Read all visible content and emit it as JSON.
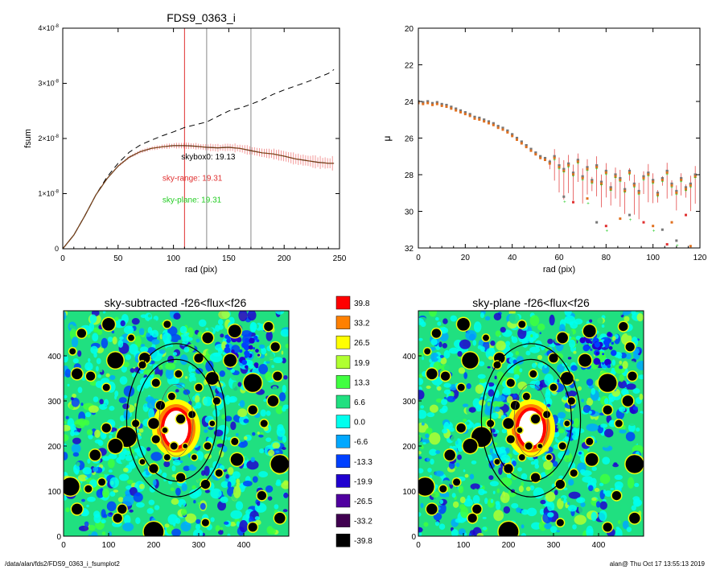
{
  "footer": {
    "path": "/data/alan/fds2/FDS9_0363_i_fsumplot2",
    "stamp": "alan@  Thu Oct 17 13:55:13 2019"
  },
  "colors": {
    "profile": "#d04040",
    "errorbar": "#f08080",
    "green": "#22cc22",
    "orange": "#e07020",
    "vline_red": "#e03030",
    "vline_grey": "#888888"
  },
  "chart_data": [
    {
      "type": "line",
      "title": "FDS9_0363_i",
      "xlabel": "rad (pix)",
      "ylabel": "fsum",
      "xlim": [
        0,
        250
      ],
      "ylim": [
        0,
        4e-08
      ],
      "xticks": [
        "0",
        "50",
        "100",
        "150",
        "200",
        "250"
      ],
      "yticks": [
        {
          "mant": "0",
          "exp": ""
        },
        {
          "mant": "1×10",
          "exp": "-8"
        },
        {
          "mant": "2×10",
          "exp": "-8"
        },
        {
          "mant": "3×10",
          "exp": "-8"
        },
        {
          "mant": "4×10",
          "exp": "-8"
        }
      ],
      "vlines_red": [
        110
      ],
      "vlines_grey": [
        130,
        170
      ],
      "annotations": [
        {
          "text": "skybox0: 19.13",
          "color": "#000000",
          "x": 107,
          "y": 1.62e-08
        },
        {
          "text": "sky-range: 19.31",
          "color": "#e03030",
          "x": 90,
          "y": 1.23e-08
        },
        {
          "text": "sky-plane: 19.31",
          "color": "#22cc22",
          "x": 90,
          "y": 8.4e-09
        }
      ],
      "series": [
        {
          "style": "dashed",
          "x": [
            0,
            10,
            20,
            30,
            40,
            50,
            60,
            70,
            80,
            90,
            100,
            110,
            120,
            130,
            140,
            150,
            160,
            170,
            180,
            190,
            200,
            210,
            220,
            230,
            240,
            245
          ],
          "y": [
            0,
            2.5e-09,
            6e-09,
            9.8e-09,
            1.3e-08,
            1.55e-08,
            1.75e-08,
            1.88e-08,
            1.97e-08,
            2.05e-08,
            2.12e-08,
            2.2e-08,
            2.25e-08,
            2.3e-08,
            2.4e-08,
            2.5e-08,
            2.55e-08,
            2.62e-08,
            2.7e-08,
            2.8e-08,
            2.88e-08,
            2.95e-08,
            3.02e-08,
            3.1e-08,
            3.18e-08,
            3.25e-08
          ]
        },
        {
          "style": "solid-errorbars",
          "x": [
            0,
            10,
            20,
            30,
            40,
            50,
            60,
            70,
            80,
            90,
            100,
            110,
            120,
            130,
            140,
            150,
            160,
            170,
            180,
            190,
            200,
            210,
            220,
            230,
            240,
            245
          ],
          "y": [
            0,
            2.5e-09,
            6e-09,
            9.8e-09,
            1.27e-08,
            1.5e-08,
            1.66e-08,
            1.76e-08,
            1.82e-08,
            1.85e-08,
            1.87e-08,
            1.87e-08,
            1.86e-08,
            1.84e-08,
            1.83e-08,
            1.84e-08,
            1.82e-08,
            1.78e-08,
            1.74e-08,
            1.72e-08,
            1.68e-08,
            1.63e-08,
            1.6e-08,
            1.57e-08,
            1.55e-08,
            1.55e-08
          ]
        }
      ]
    },
    {
      "type": "scatter",
      "xlabel": "rad (pix)",
      "ylabel": "μ",
      "xlim": [
        0,
        120
      ],
      "ylim": [
        32,
        20
      ],
      "xticks": [
        "0",
        "20",
        "40",
        "60",
        "80",
        "100",
        "120"
      ],
      "yticks": [
        "20",
        "22",
        "24",
        "26",
        "28",
        "30",
        "32"
      ],
      "series": [
        {
          "name": "",
          "x": [
            0,
            2,
            4,
            6,
            8,
            10,
            12,
            14,
            16,
            18,
            20,
            22,
            24,
            26,
            28,
            30,
            32,
            34,
            36,
            38,
            40,
            42,
            44,
            46,
            48,
            50,
            52,
            54,
            56,
            58,
            60,
            62,
            64,
            66,
            68,
            70,
            72,
            74,
            76,
            78,
            80,
            82,
            84,
            86,
            88,
            90,
            92,
            94,
            96,
            98,
            100,
            102,
            104,
            106,
            108,
            110,
            112,
            114,
            116,
            118
          ],
          "y": [
            24.0,
            24.05,
            24.0,
            24.1,
            24.05,
            24.15,
            24.2,
            24.3,
            24.4,
            24.5,
            24.6,
            24.7,
            24.85,
            24.9,
            25.0,
            25.1,
            25.2,
            25.35,
            25.45,
            25.6,
            25.8,
            26.0,
            26.2,
            26.4,
            26.6,
            26.8,
            27.0,
            27.1,
            27.3,
            27.0,
            27.5,
            27.7,
            27.4,
            27.9,
            27.2,
            28.1,
            27.6,
            28.3,
            27.5,
            28.4,
            27.8,
            28.7,
            28.0,
            28.2,
            28.8,
            27.8,
            28.5,
            28.9,
            28.1,
            27.9,
            28.3,
            29.0,
            28.2,
            27.8,
            28.5,
            28.9,
            28.2,
            28.7,
            28.5,
            28.0
          ]
        }
      ],
      "outliers": {
        "x": [
          62,
          66,
          72,
          76,
          80,
          86,
          90,
          96,
          100,
          104,
          106,
          108,
          110,
          114,
          116
        ],
        "y": [
          29.2,
          29.5,
          29.3,
          30.6,
          30.8,
          30.4,
          30.2,
          30.6,
          30.8,
          31.0,
          31.8,
          30.6,
          31.6,
          30.2,
          31.9
        ]
      }
    },
    {
      "type": "heatmap",
      "title": "sky-subtracted -f26<flux<f26",
      "xlim": [
        0,
        500
      ],
      "ylim": [
        0,
        500
      ],
      "xticks": [
        "0",
        "100",
        "200",
        "300",
        "400"
      ],
      "yticks": [
        "0",
        "100",
        "200",
        "300",
        "400"
      ]
    },
    {
      "type": "heatmap",
      "title": "sky-plane -f26<flux<f26",
      "xlim": [
        0,
        500
      ],
      "ylim": [
        0,
        500
      ],
      "xticks": [
        "0",
        "100",
        "200",
        "300",
        "400"
      ],
      "yticks": [
        "0",
        "100",
        "200",
        "300",
        "400"
      ]
    }
  ],
  "colorbar": {
    "labels": [
      "39.8",
      "33.2",
      "26.5",
      "19.9",
      "13.3",
      "6.6",
      "0.0",
      "-6.6",
      "-13.3",
      "-19.9",
      "-26.5",
      "-33.2",
      "-39.8"
    ],
    "colors": [
      "#ff0000",
      "#ff8000",
      "#ffff00",
      "#b0ff30",
      "#40ff40",
      "#20e080",
      "#00ffee",
      "#00a8ff",
      "#0040ff",
      "#2000d0",
      "#5000a0",
      "#400050",
      "#000000"
    ]
  }
}
